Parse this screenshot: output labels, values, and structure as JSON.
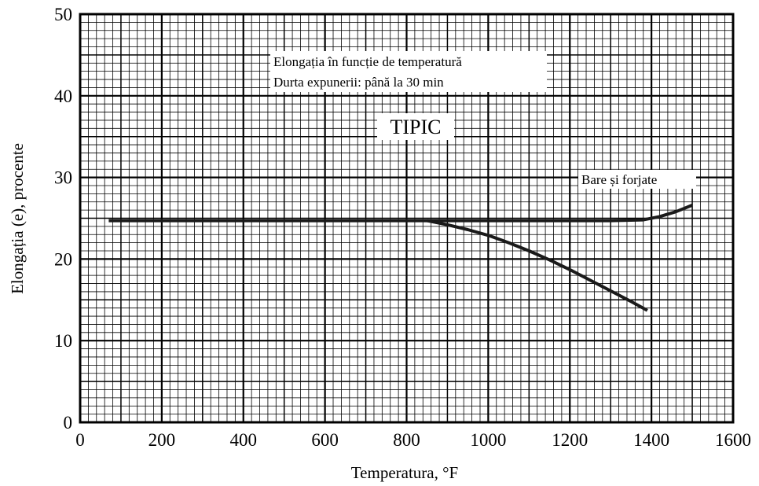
{
  "chart_data": {
    "type": "line",
    "xlabel": "Temperatura, °F",
    "ylabel": "Elongația  (e), procente",
    "xlim": [
      0,
      1600
    ],
    "ylim": [
      0,
      50
    ],
    "x_ticks": [
      "0",
      "200",
      "400",
      "600",
      "800",
      "1000",
      "1200",
      "1400",
      "1600"
    ],
    "y_ticks": [
      "0",
      "10",
      "20",
      "30",
      "40",
      "50"
    ],
    "grid": true,
    "annotations": {
      "title_line1": "Elongația în funcție de temperatură",
      "title_line2": "Durta expunerii: până la 30 min",
      "typical": "TIPIC",
      "series_label": "Bare și forjate"
    },
    "series": [
      {
        "name": "Bare și forjate",
        "points": [
          [
            70,
            24.7
          ],
          [
            200,
            24.7
          ],
          [
            400,
            24.7
          ],
          [
            600,
            24.7
          ],
          [
            800,
            24.7
          ],
          [
            1000,
            24.7
          ],
          [
            1200,
            24.7
          ],
          [
            1300,
            24.7
          ],
          [
            1380,
            24.8
          ],
          [
            1420,
            25.2
          ],
          [
            1460,
            25.8
          ],
          [
            1500,
            26.6
          ]
        ]
      },
      {
        "name": "",
        "points": [
          [
            850,
            24.7
          ],
          [
            900,
            24.2
          ],
          [
            950,
            23.6
          ],
          [
            1000,
            22.9
          ],
          [
            1050,
            22.0
          ],
          [
            1100,
            21.0
          ],
          [
            1150,
            19.9
          ],
          [
            1200,
            18.7
          ],
          [
            1250,
            17.4
          ],
          [
            1300,
            16.1
          ],
          [
            1350,
            14.8
          ],
          [
            1390,
            13.7
          ]
        ]
      }
    ]
  }
}
